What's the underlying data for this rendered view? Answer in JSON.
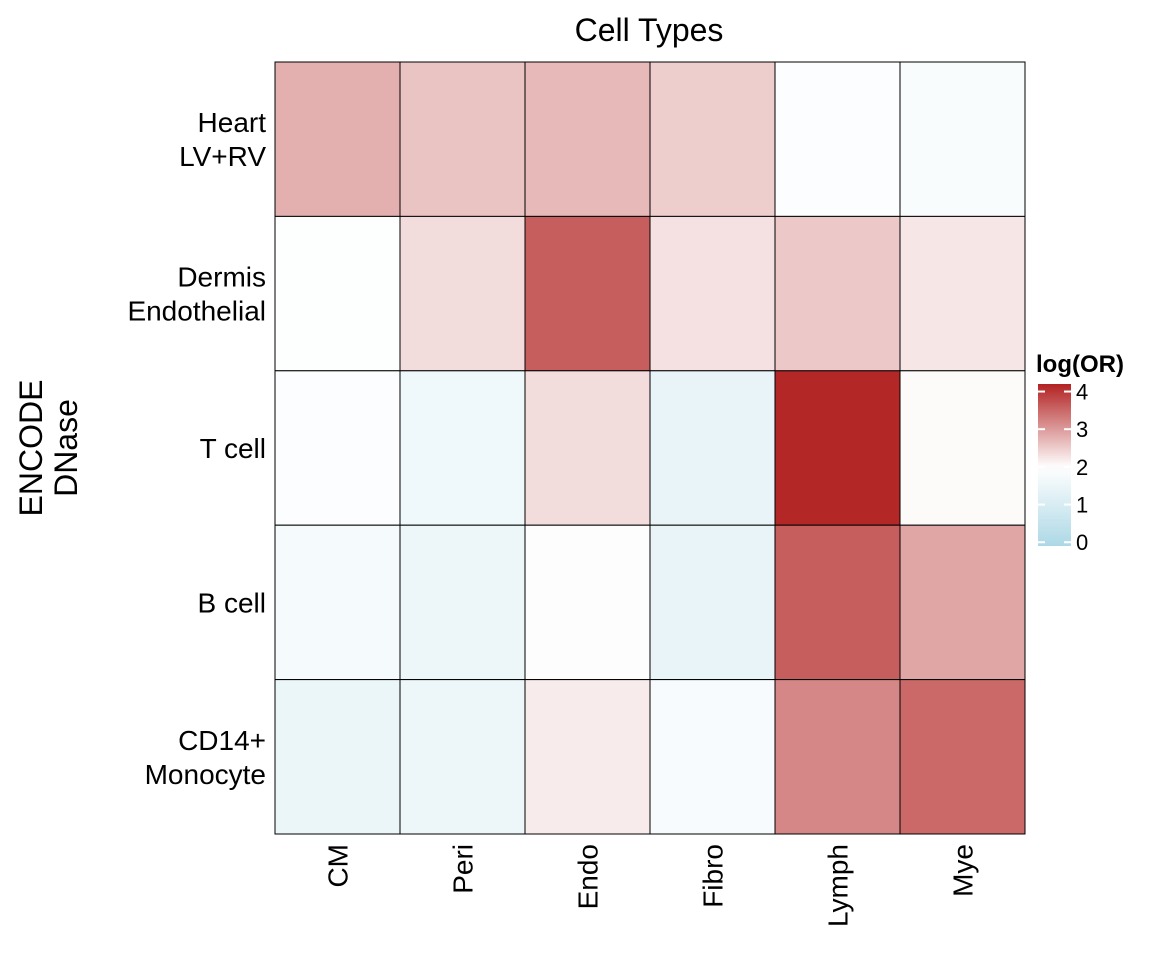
{
  "chart_data": {
    "type": "heatmap",
    "title": "Cell Types",
    "ylabel": [
      "ENCODE",
      "DNase"
    ],
    "columns": [
      "CM",
      "Peri",
      "Endo",
      "Fibro",
      "Lymph",
      "Mye"
    ],
    "rows": [
      [
        "Heart",
        "LV+RV"
      ],
      [
        "Dermis",
        "Endothelial"
      ],
      [
        "T cell"
      ],
      [
        "B cell"
      ],
      [
        "CD14+",
        "Monocyte"
      ]
    ],
    "values": [
      [
        2.8,
        2.6,
        2.7,
        2.5,
        1.9,
        1.85
      ],
      [
        1.95,
        2.35,
        3.6,
        2.3,
        2.55,
        2.25
      ],
      [
        1.9,
        1.6,
        2.35,
        1.4,
        4.15,
        2.05
      ],
      [
        1.75,
        1.55,
        2.02,
        1.4,
        3.6,
        2.9
      ],
      [
        1.5,
        1.55,
        2.2,
        1.8,
        3.2,
        3.5
      ]
    ],
    "legend": {
      "title": "log(OR)",
      "ticks": [
        "0",
        "1",
        "2",
        "3",
        "4"
      ],
      "min": -0.1,
      "mid": 2,
      "max": 4.2,
      "low_color": "#ADD8E6",
      "mid_color": "#FFFFFF",
      "high_color": "#B22222",
      "position": "right"
    }
  }
}
